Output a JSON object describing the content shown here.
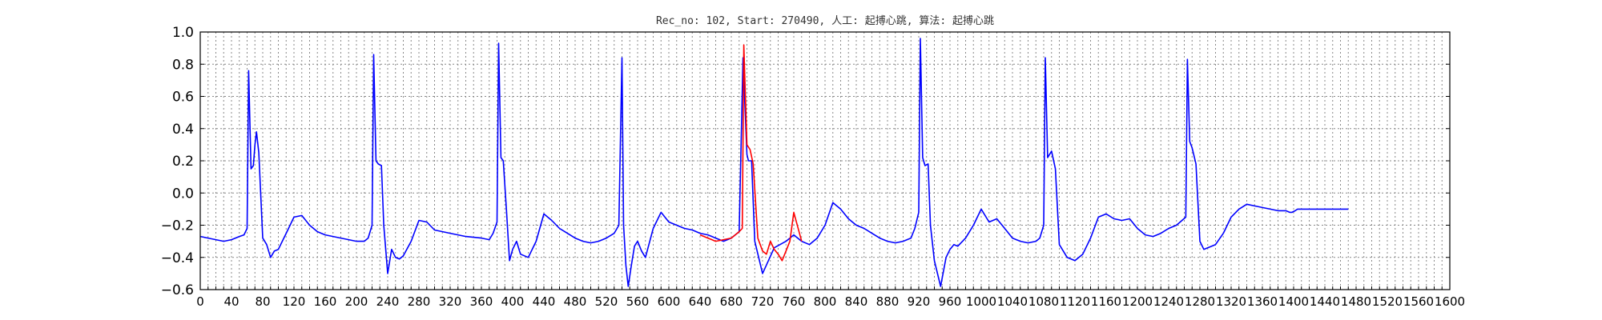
{
  "chart_data": {
    "type": "line",
    "title": "Rec_no: 102, Start: 270490, 人工: 起搏心跳, 算法: 起搏心跳",
    "xlabel": "",
    "ylabel": "",
    "xlim": [
      0,
      1600
    ],
    "ylim": [
      -0.6,
      1.0
    ],
    "yticks": [
      -0.6,
      -0.4,
      -0.2,
      0.0,
      0.2,
      0.4,
      0.6,
      0.8,
      1.0
    ],
    "ytick_labels": [
      "−0.6",
      "−0.4",
      "−0.2",
      "0.0",
      "0.2",
      "0.4",
      "0.6",
      "0.8",
      "1.0"
    ],
    "xticks": [
      0,
      40,
      80,
      120,
      160,
      200,
      240,
      280,
      320,
      360,
      400,
      440,
      480,
      520,
      560,
      600,
      640,
      680,
      720,
      760,
      800,
      840,
      880,
      920,
      960,
      1000,
      1040,
      1080,
      1120,
      1160,
      1200,
      1240,
      1280,
      1320,
      1360,
      1400,
      1440,
      1480,
      1520,
      1560,
      1600
    ],
    "xtick_labels": [
      "0",
      "40",
      "80",
      "120",
      "160",
      "200",
      "240",
      "280",
      "320",
      "360",
      "400",
      "440",
      "480",
      "520",
      "560",
      "600",
      "640",
      "680",
      "720",
      "760",
      "800",
      "840",
      "880",
      "920",
      "960",
      "1000",
      "1040",
      "1080",
      "1120",
      "1160",
      "1200",
      "1240",
      "1280",
      "1320",
      "1360",
      "1400",
      "1440",
      "1480",
      "1520",
      "1560",
      "1600"
    ],
    "xtick_step": 10,
    "grid": true,
    "series": [
      {
        "color": "#0000ff",
        "x": [
          0,
          10,
          20,
          30,
          40,
          50,
          56,
          60,
          62,
          65,
          68,
          70,
          72,
          75,
          80,
          85,
          90,
          95,
          100,
          110,
          120,
          130,
          140,
          150,
          160,
          170,
          180,
          190,
          200,
          210,
          215,
          220,
          222,
          225,
          228,
          232,
          235,
          240,
          245,
          250,
          255,
          260,
          270,
          280,
          290,
          300,
          320,
          340,
          360,
          370,
          375,
          380,
          382,
          385,
          388,
          392,
          396,
          400,
          405,
          410,
          420,
          430,
          440,
          450,
          460,
          470,
          480,
          490,
          500,
          510,
          520,
          530,
          536,
          540,
          542,
          545,
          548,
          552,
          556,
          560,
          565,
          570,
          580,
          590,
          600,
          620,
          630,
          640,
          650,
          660,
          670,
          680,
          690,
          695,
          700,
          702,
          706,
          710,
          720,
          735,
          750,
          760,
          770
        ],
        "y": [
          -0.27,
          -0.28,
          -0.29,
          -0.3,
          -0.29,
          -0.27,
          -0.26,
          -0.22,
          0.76,
          0.15,
          0.17,
          0.3,
          0.38,
          0.25,
          -0.28,
          -0.32,
          -0.4,
          -0.36,
          -0.35,
          -0.25,
          -0.15,
          -0.14,
          -0.2,
          -0.24,
          -0.26,
          -0.27,
          -0.28,
          -0.29,
          -0.3,
          -0.3,
          -0.28,
          -0.2,
          0.86,
          0.2,
          0.18,
          0.17,
          -0.2,
          -0.5,
          -0.35,
          -0.4,
          -0.41,
          -0.39,
          -0.3,
          -0.17,
          -0.18,
          -0.23,
          -0.25,
          -0.27,
          -0.28,
          -0.29,
          -0.25,
          -0.18,
          0.93,
          0.22,
          0.2,
          -0.1,
          -0.42,
          -0.35,
          -0.3,
          -0.38,
          -0.4,
          -0.3,
          -0.13,
          -0.17,
          -0.22,
          -0.25,
          -0.28,
          -0.3,
          -0.31,
          -0.3,
          -0.28,
          -0.25,
          -0.2,
          0.84,
          -0.2,
          -0.45,
          -0.58,
          -0.45,
          -0.33,
          -0.3,
          -0.36,
          -0.4,
          -0.22,
          -0.12,
          -0.18,
          -0.22,
          -0.23,
          -0.25,
          -0.26,
          -0.28,
          -0.3,
          -0.28,
          -0.24,
          0.84,
          0.24,
          0.2,
          0.2,
          -0.3,
          -0.5,
          -0.34,
          -0.3,
          -0.26,
          -0.3
        ]
      },
      {
        "color": "#0000ff",
        "x": [
          770,
          780,
          790,
          800,
          810,
          820,
          830,
          840,
          850,
          860,
          870,
          880,
          890,
          900,
          910,
          915,
          920,
          922,
          925,
          928,
          932,
          935,
          940,
          948,
          955,
          960,
          965,
          970,
          980,
          990,
          1000,
          1010,
          1020,
          1030,
          1040,
          1050,
          1060,
          1070,
          1075,
          1080,
          1082,
          1085,
          1090,
          1095,
          1100,
          1110,
          1120,
          1130,
          1140,
          1150,
          1160,
          1170,
          1180,
          1190,
          1200,
          1210,
          1220,
          1230,
          1240,
          1250,
          1262,
          1264,
          1267,
          1270,
          1275,
          1280,
          1285,
          1290,
          1300,
          1310,
          1320,
          1330,
          1340,
          1350,
          1360,
          1370,
          1380,
          1390,
          1395,
          1398,
          1402,
          1405,
          1410,
          1420,
          1430,
          1440,
          1450,
          1460,
          1470
        ],
        "y": [
          -0.3,
          -0.32,
          -0.28,
          -0.2,
          -0.06,
          -0.1,
          -0.16,
          -0.2,
          -0.22,
          -0.25,
          -0.28,
          -0.3,
          -0.31,
          -0.3,
          -0.28,
          -0.22,
          -0.12,
          0.96,
          0.22,
          0.17,
          0.18,
          -0.2,
          -0.42,
          -0.58,
          -0.4,
          -0.35,
          -0.32,
          -0.33,
          -0.28,
          -0.2,
          -0.1,
          -0.18,
          -0.16,
          -0.22,
          -0.28,
          -0.3,
          -0.31,
          -0.3,
          -0.28,
          -0.2,
          0.84,
          0.22,
          0.26,
          0.15,
          -0.32,
          -0.4,
          -0.42,
          -0.38,
          -0.28,
          -0.15,
          -0.13,
          -0.16,
          -0.17,
          -0.16,
          -0.22,
          -0.26,
          -0.27,
          -0.25,
          -0.22,
          -0.2,
          -0.15,
          0.83,
          0.32,
          0.28,
          0.18,
          -0.3,
          -0.35,
          -0.34,
          -0.32,
          -0.25,
          -0.15,
          -0.1,
          -0.07,
          -0.08,
          -0.09,
          -0.1,
          -0.11,
          -0.11,
          -0.12,
          -0.12,
          -0.11,
          -0.1,
          -0.1,
          -0.1,
          -0.1,
          -0.1,
          -0.1,
          -0.1,
          -0.1
        ]
      },
      {
        "color": "#ff0000",
        "x": [
          640,
          650,
          660,
          670,
          680,
          690,
          694,
          696,
          700,
          704,
          708,
          714,
          720,
          725,
          730,
          735,
          740,
          745,
          750,
          755,
          760,
          770
        ],
        "y": [
          -0.26,
          -0.28,
          -0.3,
          -0.29,
          -0.28,
          -0.24,
          -0.22,
          0.92,
          0.3,
          0.27,
          0.18,
          -0.28,
          -0.36,
          -0.38,
          -0.3,
          -0.35,
          -0.38,
          -0.42,
          -0.36,
          -0.3,
          -0.12,
          -0.3
        ]
      }
    ]
  }
}
